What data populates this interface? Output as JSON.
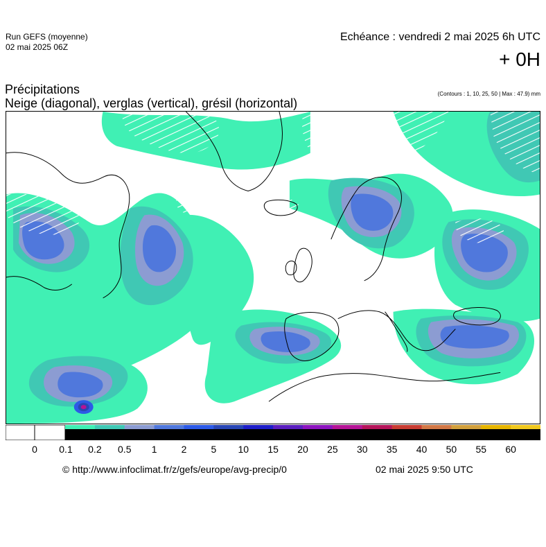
{
  "header": {
    "run_line1": "Run GEFS (moyenne)",
    "run_line2": "02 mai 2025 06Z",
    "echeance": "Echéance : vendredi 2 mai 2025 6h UTC",
    "offset": "+ 0H",
    "title_line1": "Précipitations",
    "title_line2": "Neige (diagonal), verglas (vertical), grésil (horizontal)",
    "contours_note": "(Contours : 1, 10, 25, 50 | Max : 47.9) mm"
  },
  "colors": {
    "c01": "#40f0b4",
    "c02": "#40c8b4",
    "c05": "#8c9cd2",
    "c1": "#5078dc",
    "c2": "#2d5ae6",
    "c5": "#2846b4",
    "c10": "#1e1ec8",
    "c15": "#5a1ebe",
    "c20": "#8c14be",
    "c25": "#b41496",
    "c30": "#b4145a",
    "c35": "#c83c32",
    "c40": "#d27846",
    "c45": "#d2a03c",
    "c50": "#e6b400",
    "c55": "#f0c81e",
    "c60": "#f0f03c",
    "coast": "#000000"
  },
  "scale": {
    "labels": [
      "0",
      "0.1",
      "0.2",
      "0.5",
      "1",
      "2",
      "5",
      "10",
      "15",
      "20",
      "25",
      "30",
      "35",
      "40",
      "50",
      "55",
      "60"
    ]
  },
  "footer": {
    "url": "© http://www.infoclimat.fr/z/gefs/europe/avg-precip/0",
    "timestamp": "02 mai 2025  9:50 UTC"
  }
}
